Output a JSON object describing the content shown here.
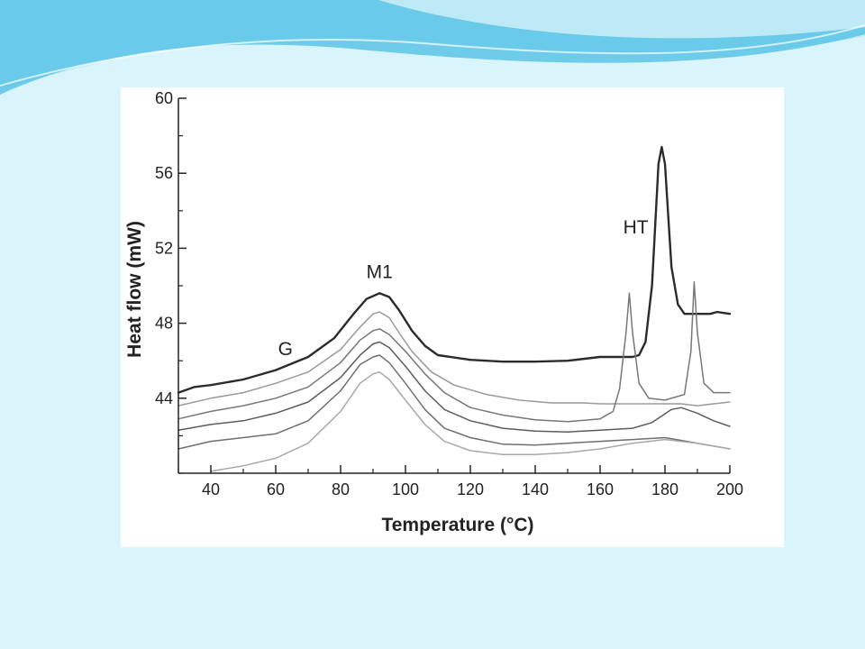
{
  "slide": {
    "colors": {
      "background": "#d9f5fb",
      "wave_dark": "#5bc4e6",
      "wave_light": "#bdeaf6",
      "panel": "#ffffff"
    }
  },
  "chart_data": {
    "type": "line",
    "xlabel": "Temperature (°C)",
    "ylabel": "Heat flow (mW)",
    "xlim": [
      30,
      200
    ],
    "ylim": [
      40,
      60
    ],
    "x_ticks": [
      40,
      60,
      80,
      100,
      120,
      140,
      160,
      180,
      200
    ],
    "y_ticks": [
      44,
      48,
      52,
      56,
      60
    ],
    "grid": false,
    "legend": "none",
    "annotations": [
      {
        "text": "G",
        "x": 63,
        "y": 46.3
      },
      {
        "text": "M1",
        "x": 92,
        "y": 50.4
      },
      {
        "text": "HT",
        "x": 171,
        "y": 52.8
      }
    ],
    "series": [
      {
        "color": "#2b2b2b",
        "width": 2.4,
        "points": [
          [
            30,
            44.3
          ],
          [
            35,
            44.6
          ],
          [
            40,
            44.7
          ],
          [
            50,
            45.0
          ],
          [
            60,
            45.5
          ],
          [
            70,
            46.2
          ],
          [
            78,
            47.2
          ],
          [
            84,
            48.5
          ],
          [
            88,
            49.3
          ],
          [
            92,
            49.6
          ],
          [
            95,
            49.4
          ],
          [
            98,
            48.7
          ],
          [
            102,
            47.6
          ],
          [
            106,
            46.8
          ],
          [
            110,
            46.3
          ],
          [
            120,
            46.05
          ],
          [
            130,
            45.95
          ],
          [
            140,
            45.95
          ],
          [
            150,
            46.0
          ],
          [
            160,
            46.2
          ],
          [
            170,
            46.2
          ],
          [
            172,
            46.3
          ],
          [
            174,
            47.0
          ],
          [
            176,
            50.0
          ],
          [
            178,
            56.5
          ],
          [
            179,
            57.4
          ],
          [
            180,
            56.5
          ],
          [
            182,
            51.0
          ],
          [
            184,
            49.0
          ],
          [
            186,
            48.5
          ],
          [
            190,
            48.5
          ],
          [
            194,
            48.5
          ],
          [
            196,
            48.6
          ],
          [
            200,
            48.5
          ]
        ]
      },
      {
        "color": "#9a9a9a",
        "width": 1.5,
        "points": [
          [
            30,
            43.6
          ],
          [
            40,
            44.0
          ],
          [
            50,
            44.3
          ],
          [
            60,
            44.8
          ],
          [
            70,
            45.4
          ],
          [
            80,
            46.6
          ],
          [
            86,
            47.8
          ],
          [
            90,
            48.5
          ],
          [
            92,
            48.6
          ],
          [
            95,
            48.3
          ],
          [
            98,
            47.5
          ],
          [
            102,
            46.5
          ],
          [
            108,
            45.4
          ],
          [
            115,
            44.7
          ],
          [
            125,
            44.2
          ],
          [
            135,
            43.9
          ],
          [
            145,
            43.75
          ],
          [
            155,
            43.75
          ],
          [
            160,
            43.7
          ],
          [
            170,
            43.7
          ],
          [
            180,
            43.7
          ],
          [
            185,
            43.7
          ],
          [
            190,
            43.6
          ],
          [
            195,
            43.7
          ],
          [
            200,
            43.8
          ]
        ]
      },
      {
        "color": "#777777",
        "width": 1.5,
        "points": [
          [
            30,
            42.9
          ],
          [
            40,
            43.3
          ],
          [
            50,
            43.6
          ],
          [
            60,
            44.0
          ],
          [
            70,
            44.6
          ],
          [
            80,
            45.9
          ],
          [
            86,
            47.1
          ],
          [
            90,
            47.6
          ],
          [
            92,
            47.7
          ],
          [
            95,
            47.4
          ],
          [
            100,
            46.5
          ],
          [
            106,
            45.3
          ],
          [
            112,
            44.3
          ],
          [
            120,
            43.5
          ],
          [
            130,
            43.1
          ],
          [
            140,
            42.85
          ],
          [
            150,
            42.75
          ],
          [
            160,
            42.9
          ],
          [
            164,
            43.3
          ],
          [
            166,
            44.5
          ],
          [
            168,
            47.5
          ],
          [
            169,
            49.6
          ],
          [
            170,
            47.5
          ],
          [
            172,
            44.8
          ],
          [
            175,
            44.0
          ],
          [
            180,
            43.9
          ],
          [
            186,
            44.2
          ],
          [
            188,
            46.5
          ],
          [
            189,
            50.2
          ],
          [
            190,
            47.5
          ],
          [
            192,
            44.8
          ],
          [
            195,
            44.3
          ],
          [
            200,
            44.3
          ]
        ]
      },
      {
        "color": "#5c5c5c",
        "width": 1.5,
        "points": [
          [
            30,
            42.3
          ],
          [
            40,
            42.6
          ],
          [
            50,
            42.8
          ],
          [
            60,
            43.2
          ],
          [
            70,
            43.8
          ],
          [
            80,
            45.1
          ],
          [
            86,
            46.3
          ],
          [
            90,
            46.9
          ],
          [
            92,
            47.0
          ],
          [
            95,
            46.7
          ],
          [
            100,
            45.7
          ],
          [
            106,
            44.4
          ],
          [
            112,
            43.4
          ],
          [
            120,
            42.8
          ],
          [
            130,
            42.4
          ],
          [
            140,
            42.25
          ],
          [
            150,
            42.2
          ],
          [
            160,
            42.3
          ],
          [
            170,
            42.4
          ],
          [
            176,
            42.7
          ],
          [
            182,
            43.4
          ],
          [
            185,
            43.5
          ],
          [
            190,
            43.2
          ],
          [
            195,
            42.8
          ],
          [
            200,
            42.5
          ]
        ]
      },
      {
        "color": "#6e6e6e",
        "width": 1.5,
        "points": [
          [
            30,
            41.3
          ],
          [
            40,
            41.7
          ],
          [
            50,
            41.9
          ],
          [
            60,
            42.1
          ],
          [
            70,
            42.8
          ],
          [
            80,
            44.4
          ],
          [
            86,
            45.8
          ],
          [
            90,
            46.2
          ],
          [
            92,
            46.3
          ],
          [
            95,
            45.9
          ],
          [
            100,
            44.8
          ],
          [
            106,
            43.4
          ],
          [
            112,
            42.4
          ],
          [
            120,
            41.9
          ],
          [
            130,
            41.55
          ],
          [
            140,
            41.5
          ],
          [
            150,
            41.6
          ],
          [
            160,
            41.7
          ],
          [
            170,
            41.8
          ],
          [
            180,
            41.9
          ],
          [
            190,
            41.6
          ],
          [
            200,
            41.3
          ]
        ]
      },
      {
        "color": "#a8a8a8",
        "width": 1.5,
        "points": [
          [
            40,
            40.1
          ],
          [
            50,
            40.4
          ],
          [
            60,
            40.8
          ],
          [
            70,
            41.6
          ],
          [
            80,
            43.3
          ],
          [
            86,
            44.8
          ],
          [
            90,
            45.3
          ],
          [
            92,
            45.4
          ],
          [
            95,
            45.0
          ],
          [
            100,
            43.9
          ],
          [
            106,
            42.6
          ],
          [
            112,
            41.7
          ],
          [
            120,
            41.2
          ],
          [
            130,
            41.0
          ],
          [
            140,
            41.0
          ],
          [
            150,
            41.1
          ],
          [
            160,
            41.3
          ],
          [
            170,
            41.6
          ],
          [
            180,
            41.8
          ],
          [
            190,
            41.6
          ],
          [
            200,
            41.3
          ]
        ]
      }
    ]
  }
}
